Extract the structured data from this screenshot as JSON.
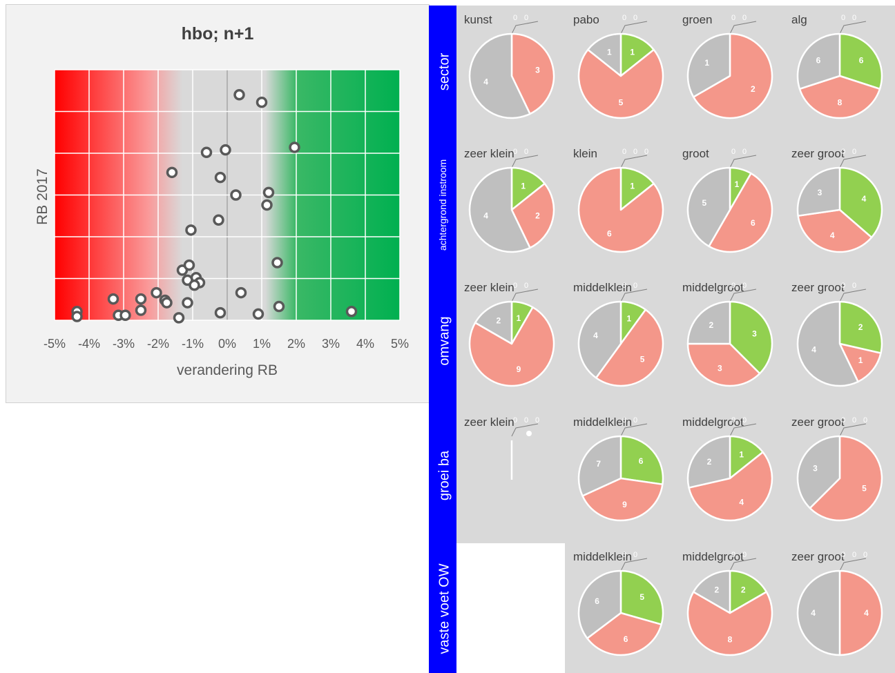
{
  "colors": {
    "green": "#92d050",
    "red": "#f4978a",
    "grey": "#bfbfbf",
    "blue_bar": "#0000ff",
    "zone_red": "#ff0000",
    "zone_green": "#00b050"
  },
  "chart_data": [
    {
      "type": "scatter",
      "title": "hbo; n+1",
      "xlabel": "verandering RB",
      "ylabel": "RB 2017",
      "xlim": [
        -5,
        5
      ],
      "xticks": [
        "-5%",
        "-4%",
        "-3%",
        "-2%",
        "-1%",
        "0%",
        "1%",
        "2%",
        "3%",
        "4%",
        "5%"
      ],
      "grid": true,
      "background_zones": [
        "red gradient from -5% to about -1.3%",
        "grey from about -1.3% to 1.2%",
        "green gradient from about 1.2% to 5%"
      ],
      "points": [
        {
          "x": 0.35,
          "y": 0.9
        },
        {
          "x": 1.0,
          "y": 0.87
        },
        {
          "x": 1.95,
          "y": 0.69
        },
        {
          "x": -0.6,
          "y": 0.67
        },
        {
          "x": -0.05,
          "y": 0.68
        },
        {
          "x": -1.6,
          "y": 0.59
        },
        {
          "x": -0.2,
          "y": 0.57
        },
        {
          "x": 1.2,
          "y": 0.51
        },
        {
          "x": 0.25,
          "y": 0.5
        },
        {
          "x": 1.15,
          "y": 0.46
        },
        {
          "x": -0.25,
          "y": 0.4
        },
        {
          "x": -1.05,
          "y": 0.36
        },
        {
          "x": 1.45,
          "y": 0.23
        },
        {
          "x": -1.3,
          "y": 0.2
        },
        {
          "x": -1.1,
          "y": 0.22
        },
        {
          "x": -0.9,
          "y": 0.17
        },
        {
          "x": -1.15,
          "y": 0.16
        },
        {
          "x": -0.8,
          "y": 0.15
        },
        {
          "x": -0.95,
          "y": 0.14
        },
        {
          "x": -2.05,
          "y": 0.11
        },
        {
          "x": -1.8,
          "y": 0.08
        },
        {
          "x": -1.75,
          "y": 0.07
        },
        {
          "x": -2.5,
          "y": 0.085
        },
        {
          "x": -3.3,
          "y": 0.085
        },
        {
          "x": -1.15,
          "y": 0.07
        },
        {
          "x": 0.4,
          "y": 0.11
        },
        {
          "x": 1.5,
          "y": 0.055
        },
        {
          "x": -2.5,
          "y": 0.04
        },
        {
          "x": -4.35,
          "y": 0.035
        },
        {
          "x": -4.35,
          "y": 0.015
        },
        {
          "x": -3.15,
          "y": 0.02
        },
        {
          "x": -2.95,
          "y": 0.02
        },
        {
          "x": -1.4,
          "y": 0.01
        },
        {
          "x": -0.2,
          "y": 0.03
        },
        {
          "x": 0.9,
          "y": 0.025
        },
        {
          "x": 3.6,
          "y": 0.035
        }
      ]
    },
    {
      "type": "pie",
      "rows": [
        {
          "label": "sector",
          "pies": [
            {
              "title": "kunst",
              "values": [
                0,
                3,
                4
              ],
              "zeros": [
                "0",
                "0"
              ]
            },
            {
              "title": "pabo",
              "values": [
                1,
                5,
                1
              ],
              "zeros": [
                "0",
                "0"
              ]
            },
            {
              "title": "groen",
              "values": [
                0,
                2,
                1
              ],
              "zeros": [
                "0",
                "0"
              ]
            },
            {
              "title": "alg",
              "values": [
                6,
                8,
                6
              ],
              "zeros": [
                "0",
                "0"
              ]
            }
          ]
        },
        {
          "label": "achtergrond instroom",
          "pies": [
            {
              "title": "zeer klein",
              "values": [
                1,
                2,
                4
              ],
              "zeros": [
                "0",
                "0"
              ]
            },
            {
              "title": "klein",
              "values": [
                1,
                6,
                0
              ],
              "zeros": [
                "0",
                "0",
                "0"
              ]
            },
            {
              "title": "groot",
              "values": [
                1,
                6,
                5
              ],
              "zeros": [
                "0",
                "0"
              ]
            },
            {
              "title": "zeer groot",
              "values": [
                4,
                4,
                3
              ],
              "zeros": [
                "0",
                "0"
              ]
            }
          ]
        },
        {
          "label": "omvang",
          "pies": [
            {
              "title": "zeer klein",
              "values": [
                1,
                9,
                2
              ],
              "zeros": [
                "0",
                "0"
              ]
            },
            {
              "title": "middelklein",
              "values": [
                1,
                5,
                4
              ],
              "zeros": [
                "0",
                "0"
              ]
            },
            {
              "title": "middelgroot",
              "values": [
                3,
                3,
                2
              ],
              "zeros": [
                "0",
                "0"
              ]
            },
            {
              "title": "zeer groot",
              "values": [
                2,
                1,
                4
              ],
              "zeros": [
                "0",
                "0"
              ]
            }
          ]
        },
        {
          "label": "groei ba",
          "pies": [
            {
              "title": "zeer klein",
              "values": [
                0,
                0,
                0
              ],
              "zeros": [
                "0",
                "0",
                "0"
              ]
            },
            {
              "title": "middelklein",
              "values": [
                6,
                9,
                7
              ],
              "zeros": [
                "0",
                "0"
              ]
            },
            {
              "title": "middelgroot",
              "values": [
                1,
                4,
                2
              ],
              "zeros": [
                "0",
                "0"
              ]
            },
            {
              "title": "zeer groot",
              "values": [
                0,
                5,
                3
              ],
              "zeros": [
                "0",
                "0",
                "0"
              ]
            }
          ]
        },
        {
          "label": "vaste voet OW",
          "pies": [
            null,
            {
              "title": "middelklein",
              "values": [
                5,
                6,
                6
              ],
              "zeros": [
                "0",
                "0"
              ]
            },
            {
              "title": "middelgroot",
              "values": [
                2,
                8,
                2
              ],
              "zeros": [
                "0",
                "0"
              ]
            },
            {
              "title": "zeer groot",
              "values": [
                0,
                4,
                4
              ],
              "zeros": [
                "0",
                "0",
                "0"
              ]
            }
          ]
        }
      ]
    }
  ]
}
